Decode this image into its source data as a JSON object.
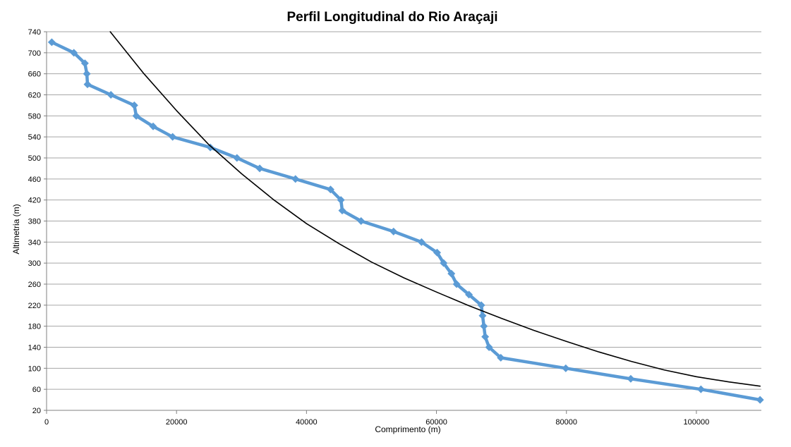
{
  "chart_data": {
    "type": "line",
    "title": "Perfil Longitudinal do Rio  Araçaji",
    "xlabel": "Comprimento (m)",
    "ylabel": "Altimetria (m)",
    "xlim": [
      0,
      110000
    ],
    "ylim": [
      20,
      740
    ],
    "x_ticks": [
      0,
      20000,
      40000,
      60000,
      80000,
      100000
    ],
    "y_ticks": [
      20,
      60,
      100,
      140,
      180,
      220,
      260,
      300,
      340,
      380,
      420,
      460,
      500,
      540,
      580,
      620,
      660,
      700,
      740
    ],
    "grid": "horizontal",
    "legend": "none",
    "series": [
      {
        "color": "#5b9bd5",
        "marker": "diamond",
        "points": [
          [
            800,
            720
          ],
          [
            4200,
            700
          ],
          [
            5900,
            680
          ],
          [
            6200,
            660
          ],
          [
            6300,
            640
          ],
          [
            9900,
            620
          ],
          [
            13500,
            600
          ],
          [
            13800,
            580
          ],
          [
            16400,
            560
          ],
          [
            19400,
            540
          ],
          [
            25200,
            520
          ],
          [
            29300,
            500
          ],
          [
            32800,
            480
          ],
          [
            38300,
            460
          ],
          [
            43700,
            440
          ],
          [
            45300,
            420
          ],
          [
            45500,
            400
          ],
          [
            48400,
            380
          ],
          [
            53400,
            360
          ],
          [
            57700,
            340
          ],
          [
            60100,
            320
          ],
          [
            61100,
            300
          ],
          [
            62300,
            280
          ],
          [
            63100,
            260
          ],
          [
            65000,
            240
          ],
          [
            66900,
            220
          ],
          [
            67100,
            200
          ],
          [
            67300,
            180
          ],
          [
            67500,
            160
          ],
          [
            68100,
            140
          ],
          [
            69900,
            120
          ],
          [
            79900,
            100
          ],
          [
            89900,
            80
          ],
          [
            100700,
            60
          ],
          [
            109800,
            40
          ]
        ]
      },
      {
        "color": "#000000",
        "marker": "none",
        "points": [
          [
            9800,
            740
          ],
          [
            15000,
            660
          ],
          [
            20000,
            590
          ],
          [
            25000,
            525
          ],
          [
            30000,
            470
          ],
          [
            35000,
            420
          ],
          [
            40000,
            375
          ],
          [
            45000,
            337
          ],
          [
            50000,
            302
          ],
          [
            55000,
            272
          ],
          [
            60000,
            245
          ],
          [
            65000,
            219
          ],
          [
            70000,
            195
          ],
          [
            75000,
            172
          ],
          [
            80000,
            151
          ],
          [
            85000,
            131
          ],
          [
            90000,
            113
          ],
          [
            95000,
            97
          ],
          [
            100000,
            84
          ],
          [
            105000,
            74
          ],
          [
            109800,
            66
          ]
        ]
      }
    ]
  }
}
